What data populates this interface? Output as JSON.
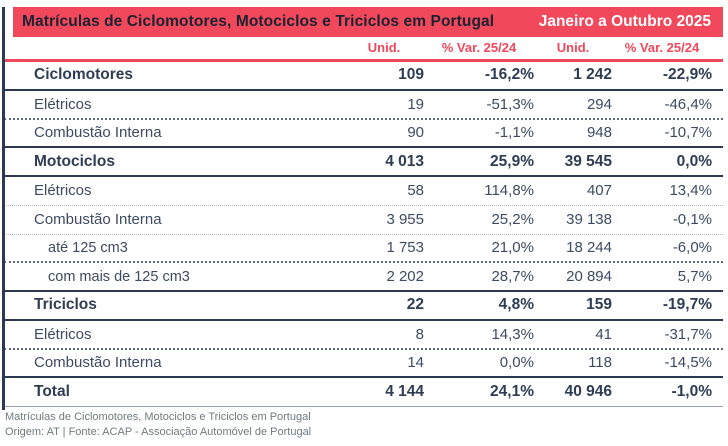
{
  "header": {
    "title": "Matrículas de Ciclomotores, Motociclos e Triciclos em Portugal",
    "period": "Janeiro a Outubro 2025"
  },
  "chart_data": {
    "type": "table",
    "title": "Matrículas de Ciclomotores, Motociclos e Triciclos em Portugal",
    "period": "Janeiro a Outubro 2025",
    "columns": [
      "Unid.",
      "% Var. 25/24",
      "Unid.",
      "% Var. 25/24"
    ],
    "rows": [
      {
        "label": "Ciclomotores",
        "unid_1": "109",
        "var_1": "-16,2%",
        "unid_2": "1 242",
        "var_2": "-22,9%"
      },
      {
        "label": "Elétricos",
        "unid_1": "19",
        "var_1": "-51,3%",
        "unid_2": "294",
        "var_2": "-46,4%"
      },
      {
        "label": "Combustão Interna",
        "unid_1": "90",
        "var_1": "-1,1%",
        "unid_2": "948",
        "var_2": "-10,7%"
      },
      {
        "label": "Motociclos",
        "unid_1": "4 013",
        "var_1": "25,9%",
        "unid_2": "39 545",
        "var_2": "0,0%"
      },
      {
        "label": "Elétricos",
        "unid_1": "58",
        "var_1": "114,8%",
        "unid_2": "407",
        "var_2": "13,4%"
      },
      {
        "label": "Combustão Interna",
        "unid_1": "3 955",
        "var_1": "25,2%",
        "unid_2": "39 138",
        "var_2": "-0,1%"
      },
      {
        "label": "até 125 cm3",
        "unid_1": "1 753",
        "var_1": "21,0%",
        "unid_2": "18 244",
        "var_2": "-6,0%"
      },
      {
        "label": "com mais de 125 cm3",
        "unid_1": "2 202",
        "var_1": "28,7%",
        "unid_2": "20 894",
        "var_2": "5,7%"
      },
      {
        "label": "Triciclos",
        "unid_1": "22",
        "var_1": "4,8%",
        "unid_2": "159",
        "var_2": "-19,7%"
      },
      {
        "label": "Elétricos",
        "unid_1": "8",
        "var_1": "14,3%",
        "unid_2": "41",
        "var_2": "-31,7%"
      },
      {
        "label": "Combustão Interna",
        "unid_1": "14",
        "var_1": "0,0%",
        "unid_2": "118",
        "var_2": "-14,5%"
      },
      {
        "label": "Total",
        "unid_1": "4 144",
        "var_1": "24,1%",
        "unid_2": "40 946",
        "var_2": "-1,0%"
      }
    ]
  },
  "footer": {
    "line1": "Matrículas de Ciclomotores, Motociclos e Triciclos em Portugal",
    "line2": "Origem: AT | Fonte: ACAP - Associação Automóvel de Portugal"
  },
  "colors": {
    "accent_red": "#F2485C",
    "navy_line": "#2B3A50",
    "text": "#3C4B62",
    "title_text": "#1B2230",
    "period_text": "#FFFFFF",
    "footer_text": "#6F7A80"
  }
}
